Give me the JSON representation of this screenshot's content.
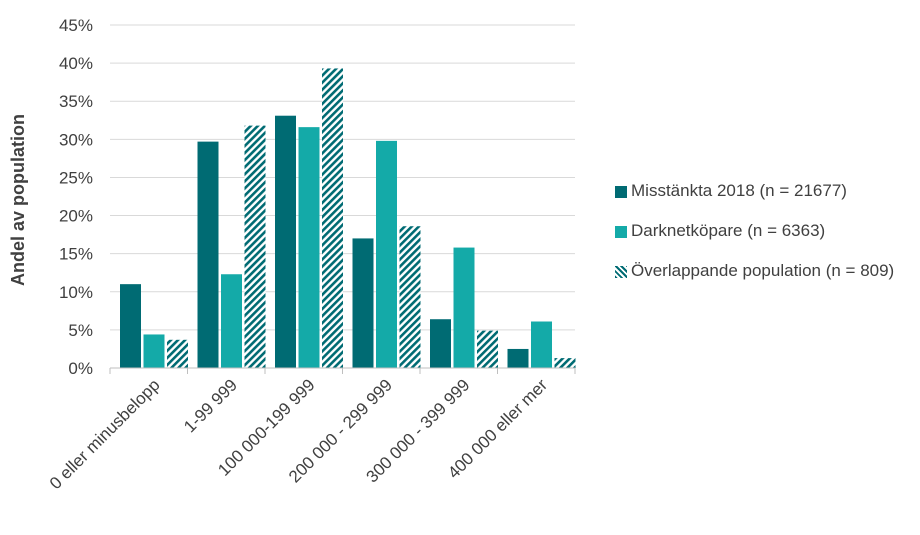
{
  "chart_data": {
    "type": "bar",
    "ylabel": "Andel av population",
    "ylim": [
      0,
      45
    ],
    "yticks": [
      "0%",
      "5%",
      "10%",
      "15%",
      "20%",
      "25%",
      "30%",
      "35%",
      "40%",
      "45%"
    ],
    "categories": [
      "0 eller minusbelopp",
      "1-99 999",
      "100 000-199 999",
      "200 000 - 299 999",
      "300 000 - 399 999",
      "400 000 eller mer"
    ],
    "series": [
      {
        "name": "Misstänkta 2018 (n = 21677)",
        "color": "#006b73",
        "pattern": "solid",
        "values": [
          11.0,
          29.7,
          33.1,
          17.0,
          6.4,
          2.5
        ]
      },
      {
        "name": "Darknetköpare (n = 6363)",
        "color": "#14aaa8",
        "pattern": "solid",
        "values": [
          4.4,
          12.3,
          31.6,
          29.8,
          15.8,
          6.1
        ]
      },
      {
        "name": "Överlappande population (n = 809)",
        "color": "#006b73",
        "pattern": "diagonal-hatch",
        "values": [
          3.7,
          31.8,
          39.3,
          18.6,
          4.9,
          1.3
        ]
      }
    ],
    "grid": true,
    "legend_position": "right"
  }
}
